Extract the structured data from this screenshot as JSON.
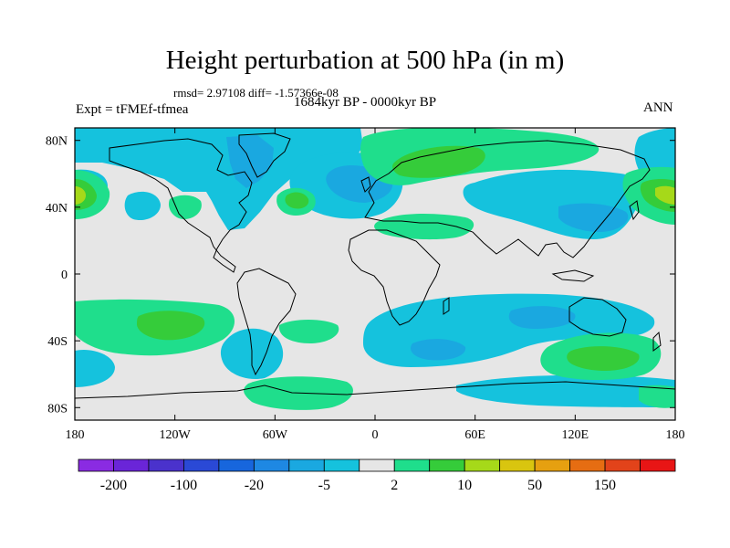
{
  "title": "Height perturbation at 500 hPa (in m)",
  "stats": "rmsd= 2.97108 diff= -1.57366e-08",
  "expt": "Expt = tFMEf-tfmea",
  "period": "1684kyr BP - 0000kyr BP",
  "season": "ANN",
  "lon_ticks": [
    {
      "v": -180,
      "label": "180"
    },
    {
      "v": -120,
      "label": "120W"
    },
    {
      "v": -60,
      "label": "60W"
    },
    {
      "v": 0,
      "label": "0"
    },
    {
      "v": 60,
      "label": "60E"
    },
    {
      "v": 120,
      "label": "120E"
    },
    {
      "v": 180,
      "label": "180"
    }
  ],
  "lat_ticks": [
    {
      "v": 80,
      "label": "80N"
    },
    {
      "v": 40,
      "label": "40N"
    },
    {
      "v": 0,
      "label": "0"
    },
    {
      "v": -40,
      "label": "40S"
    },
    {
      "v": -80,
      "label": "80S"
    }
  ],
  "colorbar": {
    "colors": [
      "#8a2be2",
      "#6a25d8",
      "#4a32cc",
      "#2a49d6",
      "#1766dd",
      "#1e88e3",
      "#1aa8e0",
      "#15c2dd",
      "#e6e6e6",
      "#1fde8c",
      "#35cc3a",
      "#a6d919",
      "#d9c50f",
      "#e6a010",
      "#e66d12",
      "#e2431a",
      "#e81515"
    ],
    "labels": [
      {
        "after": 1,
        "text": "-200"
      },
      {
        "after": 3,
        "text": "-100"
      },
      {
        "after": 5,
        "text": "-20"
      },
      {
        "after": 7,
        "text": "-5"
      },
      {
        "after": 9,
        "text": "2"
      },
      {
        "after": 11,
        "text": "10"
      },
      {
        "after": 13,
        "text": "50"
      },
      {
        "after": 15,
        "text": "150"
      }
    ]
  },
  "colors": {
    "background": "#e6e6e6",
    "neg_light": "#15c2dd",
    "neg_mid": "#1aa8e0",
    "pos_light": "#1fde8c",
    "pos_mid": "#35cc3a",
    "pos_high": "#a6d919"
  }
}
